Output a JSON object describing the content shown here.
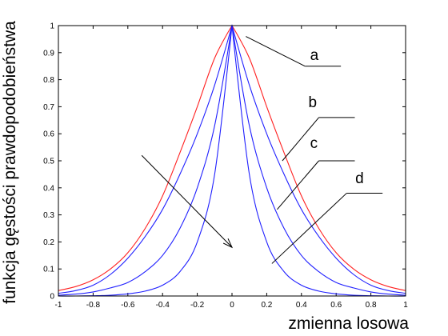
{
  "chart_data": {
    "type": "line",
    "title": "",
    "xlabel": "zmienna losowa",
    "ylabel": "funkcja gęstości prawdopodobieństwa",
    "xlim": [
      -1,
      1
    ],
    "ylim": [
      0,
      1
    ],
    "x_ticks": [
      "-1",
      "-0.8",
      "-0.6",
      "-0.4",
      "-0.2",
      "0",
      "0.2",
      "0.4",
      "0.6",
      "0.8",
      "1"
    ],
    "y_ticks": [
      "0",
      "0.1",
      "0.2",
      "0.3",
      "0.4",
      "0.5",
      "0.6",
      "0.7",
      "0.8",
      "0.9",
      "1"
    ],
    "grid": false,
    "colors": {
      "red": "#ff2020",
      "blue": "#2020ff",
      "axis": "#000000"
    },
    "series": [
      {
        "label": "a",
        "color": "#ff2020",
        "x": [
          -1,
          -0.9,
          -0.8,
          -0.7,
          -0.6,
          -0.5,
          -0.4,
          -0.3,
          -0.2,
          -0.1,
          0,
          0.1,
          0.2,
          0.3,
          0.4,
          0.5,
          0.6,
          0.7,
          0.8,
          0.9,
          1
        ],
        "y": [
          0.02,
          0.035,
          0.06,
          0.1,
          0.16,
          0.25,
          0.37,
          0.53,
          0.7,
          0.88,
          1.0,
          0.88,
          0.7,
          0.53,
          0.37,
          0.25,
          0.16,
          0.1,
          0.06,
          0.035,
          0.02
        ]
      },
      {
        "label": "b",
        "color": "#2020ff",
        "x": [
          -1,
          -0.9,
          -0.8,
          -0.7,
          -0.6,
          -0.5,
          -0.4,
          -0.3,
          -0.2,
          -0.1,
          0,
          0.1,
          0.2,
          0.3,
          0.4,
          0.5,
          0.6,
          0.7,
          0.8,
          0.9,
          1
        ],
        "y": [
          0.01,
          0.02,
          0.04,
          0.08,
          0.14,
          0.22,
          0.32,
          0.45,
          0.6,
          0.78,
          1.0,
          0.78,
          0.6,
          0.45,
          0.32,
          0.22,
          0.14,
          0.08,
          0.04,
          0.02,
          0.01
        ]
      },
      {
        "label": "c",
        "color": "#2020ff",
        "x": [
          -1,
          -0.9,
          -0.8,
          -0.7,
          -0.6,
          -0.5,
          -0.4,
          -0.3,
          -0.2,
          -0.1,
          0,
          0.1,
          0.2,
          0.3,
          0.4,
          0.5,
          0.6,
          0.7,
          0.8,
          0.9,
          1
        ],
        "y": [
          0.003,
          0.007,
          0.015,
          0.03,
          0.05,
          0.09,
          0.15,
          0.25,
          0.4,
          0.63,
          1.0,
          0.63,
          0.4,
          0.25,
          0.15,
          0.09,
          0.05,
          0.03,
          0.015,
          0.007,
          0.003
        ]
      },
      {
        "label": "d",
        "color": "#2020ff",
        "x": [
          -1,
          -0.9,
          -0.8,
          -0.7,
          -0.6,
          -0.5,
          -0.4,
          -0.3,
          -0.2,
          -0.1,
          0,
          0.1,
          0.2,
          0.3,
          0.4,
          0.5,
          0.6,
          0.7,
          0.8,
          0.9,
          1
        ],
        "y": [
          0.0,
          0.0,
          0.001,
          0.003,
          0.008,
          0.018,
          0.04,
          0.09,
          0.2,
          0.45,
          1.0,
          0.45,
          0.2,
          0.09,
          0.04,
          0.018,
          0.008,
          0.003,
          0.001,
          0.0,
          0.0
        ]
      }
    ],
    "annotations": [
      {
        "label": "a",
        "points_to": [
          0.08,
          0.96
        ],
        "line_to": [
          0.42,
          0.85
        ],
        "text_at": [
          0.45,
          0.855
        ]
      },
      {
        "label": "b",
        "points_to": [
          0.29,
          0.5
        ],
        "line_to": [
          0.5,
          0.66
        ],
        "text_at": [
          0.44,
          0.68
        ]
      },
      {
        "label": "c",
        "points_to": [
          0.26,
          0.32
        ],
        "line_to": [
          0.5,
          0.5
        ],
        "text_at": [
          0.45,
          0.53
        ]
      },
      {
        "label": "d",
        "points_to": [
          0.23,
          0.12
        ],
        "line_to": [
          0.66,
          0.38
        ],
        "text_at": [
          0.71,
          0.4
        ]
      }
    ],
    "trend_arrow": {
      "from": [
        -0.52,
        0.52
      ],
      "to": [
        0.0,
        0.18
      ]
    }
  }
}
